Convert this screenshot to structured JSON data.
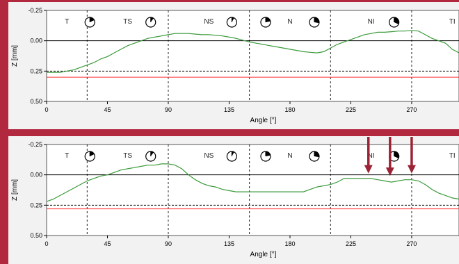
{
  "chart_data": [
    {
      "type": "line",
      "xlabel": "Angle [°]",
      "ylabel": "Z [mm]",
      "xlim": [
        0,
        305
      ],
      "ylim": [
        -0.25,
        0.5
      ],
      "y_inverted": true,
      "x_ticks": [
        "0",
        "45",
        "90",
        "135",
        "180",
        "225",
        "270"
      ],
      "y_ticks": [
        "-0.25",
        "0.00",
        "0.25",
        "0.50"
      ],
      "vertical_dividers": [
        30,
        90,
        150,
        210,
        270
      ],
      "sector_labels": [
        {
          "label": "T",
          "x": 15,
          "icon_x": 32,
          "icon_fill": 0.18
        },
        {
          "label": "TS",
          "x": 60,
          "icon_x": 77,
          "icon_fill": 0.1
        },
        {
          "label": "NS",
          "x": 120,
          "icon_x": 137,
          "icon_fill": 0.08
        },
        {
          "label": "",
          "x": null,
          "icon_x": 162,
          "icon_fill": 0.22
        },
        {
          "label": "N",
          "x": 180,
          "icon_x": null,
          "icon_fill": 0
        },
        {
          "label": "",
          "x": null,
          "icon_x": 198,
          "icon_fill": 0.28
        },
        {
          "label": "NI",
          "x": 240,
          "icon_x": 257,
          "icon_fill": 0.32
        },
        {
          "label": "TI",
          "x": 300,
          "icon_x": 317,
          "icon_fill": 0.4
        }
      ],
      "reference_lines": [
        {
          "y": 0.25,
          "style": "dashed",
          "color": "#000000"
        },
        {
          "y": 0.3,
          "style": "solid",
          "color": "#ff3333"
        },
        {
          "y": 0.0,
          "style": "solid",
          "color": "#000000"
        }
      ],
      "series": [
        {
          "color": "#3a9a3a",
          "x": [
            0,
            5,
            10,
            15,
            20,
            25,
            30,
            35,
            40,
            45,
            50,
            55,
            60,
            65,
            70,
            75,
            80,
            85,
            90,
            95,
            100,
            105,
            110,
            115,
            120,
            125,
            130,
            135,
            140,
            145,
            150,
            155,
            160,
            165,
            170,
            175,
            180,
            185,
            190,
            195,
            200,
            205,
            210,
            215,
            220,
            225,
            230,
            235,
            240,
            245,
            250,
            255,
            260,
            265,
            270,
            275,
            280,
            285,
            290,
            295,
            300,
            305
          ],
          "values": [
            0.26,
            0.26,
            0.26,
            0.25,
            0.24,
            0.22,
            0.2,
            0.18,
            0.15,
            0.13,
            0.1,
            0.07,
            0.04,
            0.02,
            0.0,
            -0.02,
            -0.03,
            -0.04,
            -0.05,
            -0.06,
            -0.06,
            -0.06,
            -0.055,
            -0.05,
            -0.05,
            -0.045,
            -0.04,
            -0.03,
            -0.02,
            -0.005,
            0.01,
            0.02,
            0.03,
            0.04,
            0.05,
            0.06,
            0.07,
            0.08,
            0.09,
            0.095,
            0.1,
            0.09,
            0.06,
            0.03,
            0.01,
            -0.01,
            -0.03,
            -0.05,
            -0.06,
            -0.07,
            -0.07,
            -0.075,
            -0.08,
            -0.08,
            -0.085,
            -0.08,
            -0.05,
            -0.02,
            0.0,
            0.02,
            0.07,
            0.1
          ]
        }
      ]
    },
    {
      "type": "line",
      "xlabel": "Angle [°]",
      "ylabel": "Z [mm]",
      "xlim": [
        0,
        305
      ],
      "ylim": [
        -0.25,
        0.5
      ],
      "y_inverted": true,
      "x_ticks": [
        "0",
        "45",
        "90",
        "135",
        "180",
        "225",
        "270"
      ],
      "y_ticks": [
        "-0.25",
        "0.00",
        "0.25",
        "0.50"
      ],
      "vertical_dividers": [
        30,
        90,
        150,
        210,
        270
      ],
      "sector_labels": [
        {
          "label": "T",
          "x": 15,
          "icon_x": 32,
          "icon_fill": 0.18
        },
        {
          "label": "TS",
          "x": 60,
          "icon_x": 77,
          "icon_fill": 0.1
        },
        {
          "label": "NS",
          "x": 120,
          "icon_x": 137,
          "icon_fill": 0.08
        },
        {
          "label": "",
          "x": null,
          "icon_x": 162,
          "icon_fill": 0.22
        },
        {
          "label": "N",
          "x": 180,
          "icon_x": null,
          "icon_fill": 0
        },
        {
          "label": "",
          "x": null,
          "icon_x": 198,
          "icon_fill": 0.28
        },
        {
          "label": "NI",
          "x": 240,
          "icon_x": 257,
          "icon_fill": 0.32
        },
        {
          "label": "TI",
          "x": 300,
          "icon_x": 317,
          "icon_fill": 0.4
        }
      ],
      "reference_lines": [
        {
          "y": 0.25,
          "style": "dashed",
          "color": "#000000"
        },
        {
          "y": 0.28,
          "style": "solid",
          "color": "#ff3333"
        },
        {
          "y": 0.0,
          "style": "solid",
          "color": "#000000"
        }
      ],
      "annotations": [
        {
          "type": "arrow",
          "x": 238,
          "y": 0.0,
          "color": "#9b2335"
        },
        {
          "type": "arrow",
          "x": 254,
          "y": 0.02,
          "color": "#9b2335"
        },
        {
          "type": "arrow",
          "x": 270,
          "y": 0.0,
          "color": "#9b2335"
        }
      ],
      "series": [
        {
          "color": "#3a9a3a",
          "x": [
            0,
            5,
            10,
            15,
            20,
            25,
            30,
            35,
            40,
            45,
            50,
            55,
            60,
            65,
            70,
            75,
            80,
            85,
            90,
            95,
            100,
            105,
            110,
            115,
            120,
            125,
            130,
            135,
            140,
            145,
            150,
            155,
            160,
            165,
            170,
            175,
            180,
            185,
            190,
            195,
            200,
            205,
            210,
            215,
            220,
            225,
            230,
            235,
            240,
            245,
            250,
            255,
            260,
            265,
            270,
            275,
            280,
            285,
            290,
            295,
            300,
            305
          ],
          "values": [
            0.22,
            0.2,
            0.17,
            0.14,
            0.11,
            0.08,
            0.05,
            0.03,
            0.01,
            0.0,
            -0.02,
            -0.04,
            -0.05,
            -0.06,
            -0.07,
            -0.08,
            -0.08,
            -0.09,
            -0.09,
            -0.08,
            -0.05,
            0.0,
            0.04,
            0.07,
            0.09,
            0.1,
            0.12,
            0.13,
            0.14,
            0.14,
            0.14,
            0.14,
            0.14,
            0.14,
            0.14,
            0.14,
            0.14,
            0.14,
            0.14,
            0.12,
            0.1,
            0.09,
            0.08,
            0.06,
            0.03,
            0.03,
            0.03,
            0.03,
            0.03,
            0.04,
            0.05,
            0.06,
            0.05,
            0.04,
            0.04,
            0.05,
            0.08,
            0.12,
            0.15,
            0.17,
            0.19,
            0.2
          ]
        }
      ]
    }
  ]
}
